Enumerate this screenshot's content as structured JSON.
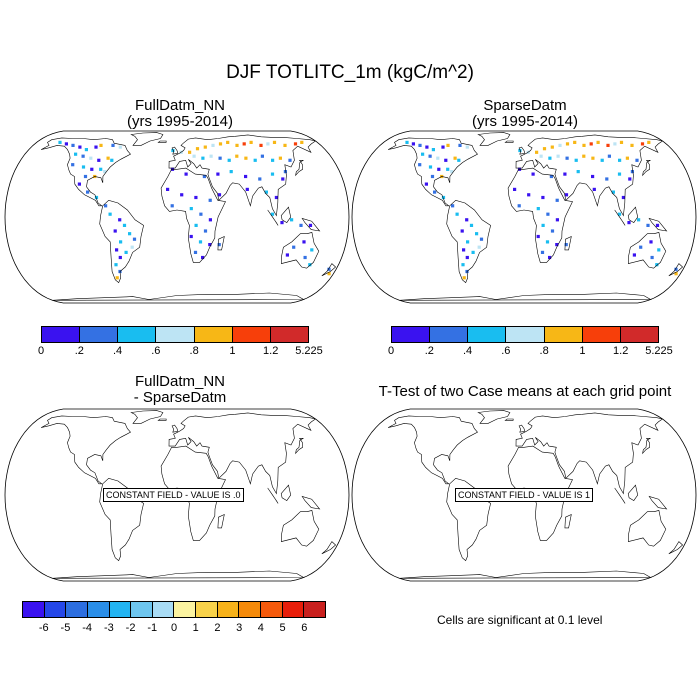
{
  "figure": {
    "title": "DJF TOTLITC_1m (kgC/m^2)"
  },
  "panels": [
    {
      "id": "top-left",
      "title_line1": "FullDatm_NN",
      "title_line2": "(yrs 1995-2014)"
    },
    {
      "id": "top-right",
      "title_line1": "SparseDatm",
      "title_line2": "(yrs 1995-2014)"
    },
    {
      "id": "bottom-left",
      "title_line1": "FullDatm_NN",
      "title_line2": "- SparseDatm",
      "overlay": "CONSTANT FIELD - VALUE IS .0"
    },
    {
      "id": "bottom-right",
      "title_line1": "T-Test of two Case means at each grid point",
      "overlay": "CONSTANT FIELD - VALUE IS 1"
    }
  ],
  "colorbar_top": {
    "colors": [
      "#3a12f0",
      "#3471e3",
      "#19bdf0",
      "#bde4f4",
      "#f7b716",
      "#f73f0a",
      "#d12a2a"
    ],
    "labels": [
      "0",
      ".2",
      ".4",
      ".6",
      ".8",
      "1",
      "1.2",
      "5.225"
    ]
  },
  "colorbar_diff": {
    "colors": [
      "#3a12f0",
      "#2547e8",
      "#2c6ee0",
      "#2a8ee8",
      "#22b4f2",
      "#6ec6ef",
      "#a9dcf5",
      "#fbf3a0",
      "#f8d24a",
      "#f7b21a",
      "#f58a0a",
      "#f55a0c",
      "#e81e0a",
      "#c9201e"
    ],
    "labels": [
      "-6",
      "-5",
      "-4",
      "-3",
      "-2",
      "-1",
      "0",
      "1",
      "2",
      "3",
      "4",
      "5",
      "6"
    ]
  },
  "footnote": "Cells are significant at 0.1 level",
  "map_data": {
    "projection": "robinson",
    "variable": "TOTLITC_1m",
    "season": "DJF",
    "units": "kgC/m^2",
    "points_fulldatm": [
      [
        -150,
        64,
        0.4
      ],
      [
        -140,
        62,
        0.1
      ],
      [
        -130,
        60,
        0.3
      ],
      [
        -120,
        58,
        0.1
      ],
      [
        -110,
        55,
        0.5
      ],
      [
        -100,
        58,
        0.1
      ],
      [
        -95,
        60,
        0.9
      ],
      [
        -80,
        60,
        0.2
      ],
      [
        -70,
        58,
        0.7
      ],
      [
        -120,
        50,
        0.5
      ],
      [
        -110,
        48,
        0.3
      ],
      [
        -100,
        46,
        0.6
      ],
      [
        -90,
        44,
        0.1
      ],
      [
        -80,
        46,
        0.9
      ],
      [
        -75,
        44,
        0.5
      ],
      [
        -118,
        40,
        0.3
      ],
      [
        -105,
        38,
        0.5
      ],
      [
        -95,
        36,
        0.1
      ],
      [
        -85,
        36,
        0.5
      ],
      [
        -80,
        34,
        0.6
      ],
      [
        -100,
        30,
        0.3
      ],
      [
        -90,
        30,
        0.9
      ],
      [
        -105,
        24,
        0.1
      ],
      [
        -95,
        18,
        0.3
      ],
      [
        -85,
        14,
        0.5
      ],
      [
        -75,
        8,
        0.3
      ],
      [
        -70,
        2,
        0.5
      ],
      [
        -60,
        -2,
        0.1
      ],
      [
        -55,
        -6,
        0.5
      ],
      [
        -65,
        -10,
        0.1
      ],
      [
        -50,
        -12,
        0.5
      ],
      [
        -45,
        -16,
        0.3
      ],
      [
        -60,
        -18,
        0.5
      ],
      [
        -65,
        -24,
        0.1
      ],
      [
        -55,
        -26,
        0.5
      ],
      [
        -48,
        -22,
        0.7
      ],
      [
        -62,
        -30,
        0.1
      ],
      [
        -68,
        -36,
        0.5
      ],
      [
        -65,
        -42,
        0.3
      ],
      [
        -70,
        -48,
        0.9
      ],
      [
        -5,
        54,
        0.5
      ],
      [
        5,
        52,
        0.7
      ],
      [
        15,
        52,
        0.9
      ],
      [
        25,
        56,
        0.9
      ],
      [
        35,
        58,
        0.9
      ],
      [
        45,
        60,
        0.7
      ],
      [
        55,
        62,
        0.9
      ],
      [
        65,
        64,
        0.9
      ],
      [
        75,
        60,
        0.9
      ],
      [
        85,
        62,
        1.1
      ],
      [
        95,
        64,
        0.9
      ],
      [
        105,
        60,
        1.1
      ],
      [
        115,
        62,
        0.7
      ],
      [
        125,
        64,
        0.9
      ],
      [
        135,
        60,
        0.9
      ],
      [
        150,
        62,
        1.1
      ],
      [
        160,
        64,
        0.9
      ],
      [
        20,
        48,
        0.7
      ],
      [
        30,
        46,
        0.5
      ],
      [
        40,
        48,
        0.7
      ],
      [
        50,
        46,
        0.3
      ],
      [
        60,
        44,
        0.5
      ],
      [
        70,
        48,
        0.9
      ],
      [
        80,
        46,
        0.9
      ],
      [
        90,
        44,
        0.5
      ],
      [
        100,
        48,
        0.3
      ],
      [
        110,
        44,
        0.5
      ],
      [
        120,
        46,
        0.9
      ],
      [
        130,
        44,
        0.3
      ],
      [
        -5,
        36,
        0.1
      ],
      [
        10,
        32,
        0.1
      ],
      [
        30,
        30,
        0.3
      ],
      [
        45,
        32,
        0.1
      ],
      [
        60,
        34,
        0.5
      ],
      [
        75,
        30,
        0.1
      ],
      [
        90,
        28,
        0.3
      ],
      [
        105,
        32,
        0.5
      ],
      [
        115,
        28,
        0.1
      ],
      [
        120,
        34,
        0.3
      ],
      [
        -10,
        20,
        0.1
      ],
      [
        5,
        16,
        0.1
      ],
      [
        20,
        14,
        0.1
      ],
      [
        35,
        12,
        0.3
      ],
      [
        45,
        16,
        0.1
      ],
      [
        75,
        20,
        0.1
      ],
      [
        95,
        18,
        0.5
      ],
      [
        105,
        14,
        0.1
      ],
      [
        -5,
        8,
        0.3
      ],
      [
        15,
        6,
        0.5
      ],
      [
        25,
        2,
        0.3
      ],
      [
        35,
        -2,
        0.1
      ],
      [
        20,
        -6,
        0.5
      ],
      [
        30,
        -10,
        0.3
      ],
      [
        15,
        -14,
        0.1
      ],
      [
        25,
        -18,
        0.5
      ],
      [
        35,
        -20,
        0.1
      ],
      [
        20,
        -26,
        0.3
      ],
      [
        28,
        -30,
        0.1
      ],
      [
        45,
        -20,
        0.3
      ],
      [
        100,
        2,
        0.5
      ],
      [
        110,
        -4,
        0.1
      ],
      [
        120,
        -2,
        0.5
      ],
      [
        130,
        -6,
        0.3
      ],
      [
        140,
        -6,
        0.1
      ],
      [
        135,
        -18,
        0.1
      ],
      [
        125,
        -22,
        0.3
      ],
      [
        145,
        -24,
        0.5
      ],
      [
        120,
        -28,
        0.1
      ],
      [
        140,
        -30,
        0.3
      ],
      [
        148,
        -36,
        0.5
      ],
      [
        172,
        -40,
        0.3
      ],
      [
        175,
        -44,
        0.9
      ]
    ]
  }
}
